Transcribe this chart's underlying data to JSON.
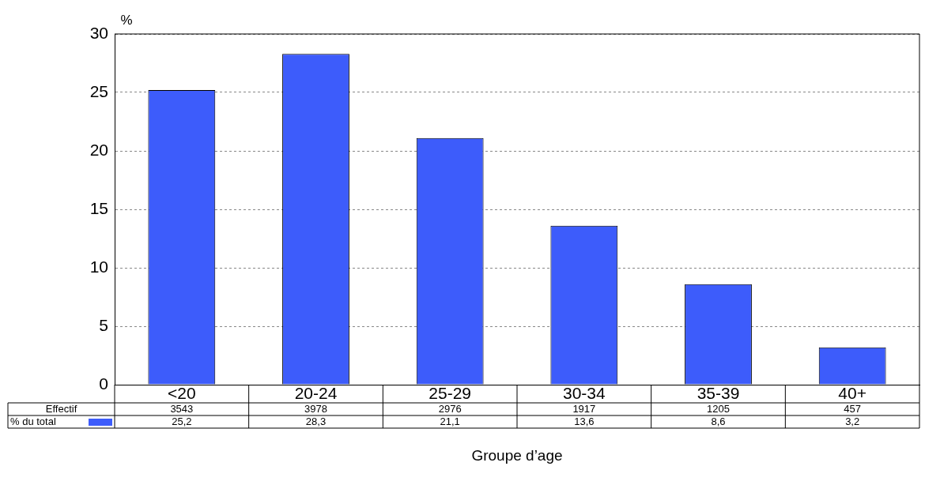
{
  "chart_data": {
    "type": "bar",
    "ylabel": "%",
    "xlabel": "Groupe d’age",
    "categories": [
      "<20",
      "20-24",
      "25-29",
      "30-34",
      "35-39",
      "40+"
    ],
    "series": [
      {
        "name": "% du total",
        "color": "#3d5cfb",
        "values": [
          25.2,
          28.3,
          21.1,
          13.6,
          8.6,
          3.2
        ],
        "value_labels": [
          "25,2",
          "28,3",
          "21,1",
          "13,6",
          "8,6",
          "3,2"
        ]
      }
    ],
    "ylim": [
      0,
      30
    ],
    "yticks": [
      0,
      5,
      10,
      15,
      20,
      25,
      30
    ],
    "grid": "y",
    "legend": "bottom",
    "annotations": [
      "Effectif",
      "3543",
      "3978",
      "2976",
      "1917",
      "1205",
      "457"
    ]
  }
}
